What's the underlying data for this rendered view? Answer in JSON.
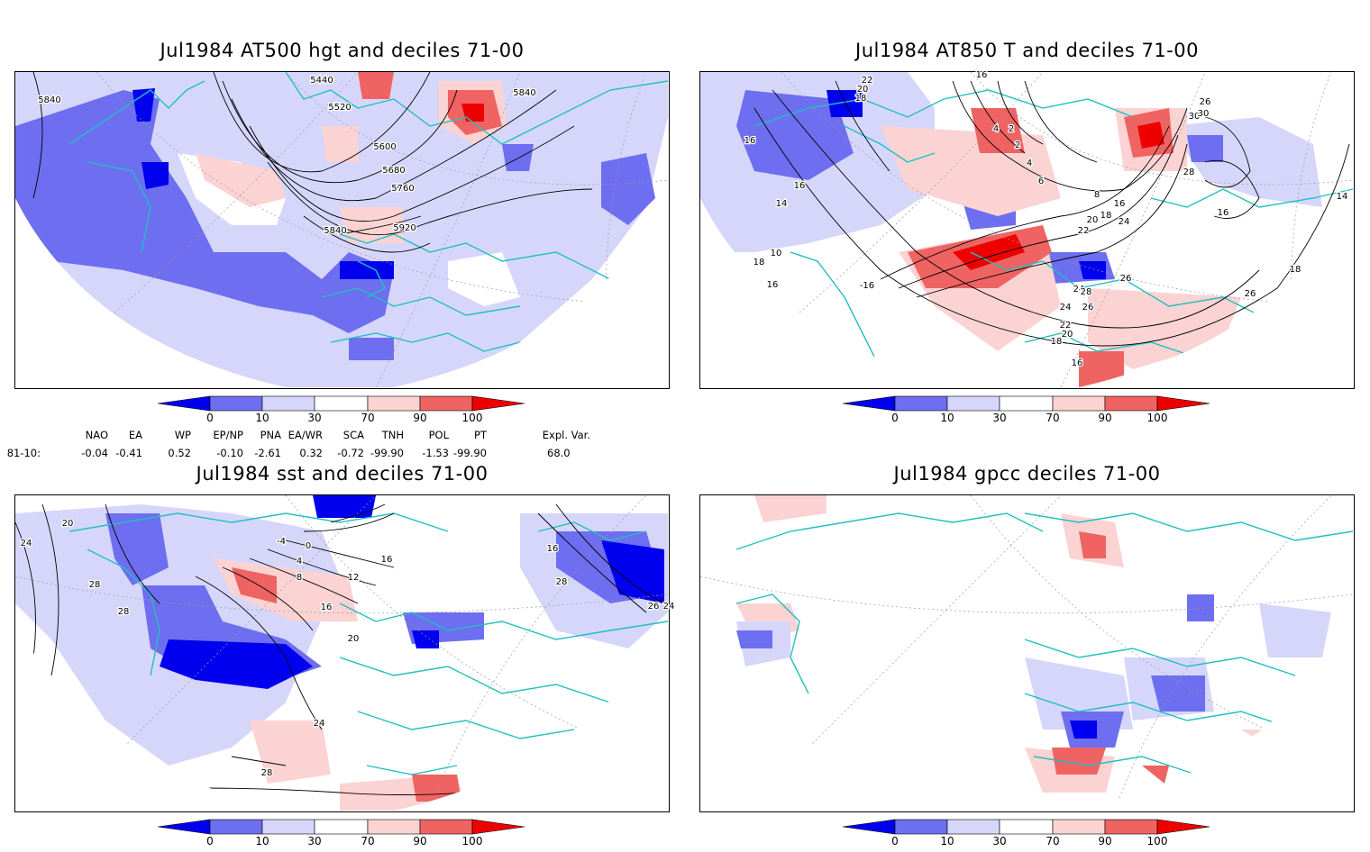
{
  "colors": {
    "dark_blue": "#0000ee",
    "mid_blue": "#6e6ef0",
    "light_blue": "#d6d6fb",
    "white": "#ffffff",
    "light_red": "#fbd3d3",
    "mid_red": "#ef6363",
    "dark_red": "#ee0000",
    "coast": "#20c0c0",
    "grid": "#9a9a9a"
  },
  "panels": [
    {
      "title": "Jul1984 AT500 hgt and deciles 71-00",
      "contour_labels": [
        "5840",
        "5440",
        "5520",
        "5600",
        "5680",
        "5760",
        "5840",
        "5920",
        "5840"
      ]
    },
    {
      "title": "Jul1984 AT850 T and deciles 71-00",
      "contour_labels": [
        "22",
        "20",
        "18",
        "16",
        "16",
        "14",
        "10",
        "18",
        "16",
        "-16",
        "16",
        "2",
        "4",
        "2",
        "4",
        "6",
        "8",
        "16",
        "18",
        "20",
        "22",
        "24",
        "26",
        "24",
        "30",
        "26",
        "30",
        "28",
        "16",
        "14",
        "18",
        "26",
        "28",
        "26",
        "24",
        "22",
        "20",
        "18",
        "16",
        "18"
      ]
    },
    {
      "title": "Jul1984 sst and deciles 71-00",
      "contour_labels": [
        "20",
        "24",
        "28",
        "28",
        "16",
        "12",
        "8",
        "-4",
        "0",
        "4",
        "16",
        "20",
        "24",
        "28",
        "16",
        "28",
        "26",
        "24"
      ]
    },
    {
      "title": "Jul1984 gpcc deciles 71-00",
      "contour_labels": []
    }
  ],
  "colorbar": {
    "labels": [
      "0",
      "10",
      "30",
      "70",
      "90",
      "100"
    ]
  },
  "indices": {
    "row_label": "81-10:",
    "columns": [
      {
        "name": "NAO",
        "value": "-0.04"
      },
      {
        "name": "EA",
        "value": "-0.41"
      },
      {
        "name": "WP",
        "value": "0.52"
      },
      {
        "name": "EP/NP",
        "value": "-0.10"
      },
      {
        "name": "PNA",
        "value": "-2.61"
      },
      {
        "name": "EA/WR",
        "value": "0.32"
      },
      {
        "name": "SCA",
        "value": "-0.72"
      },
      {
        "name": "TNH",
        "value": "-99.90"
      },
      {
        "name": "POL",
        "value": "-1.53"
      },
      {
        "name": "PT",
        "value": "-99.90"
      },
      {
        "name": "Expl. Var.",
        "value": "68.0"
      }
    ]
  }
}
